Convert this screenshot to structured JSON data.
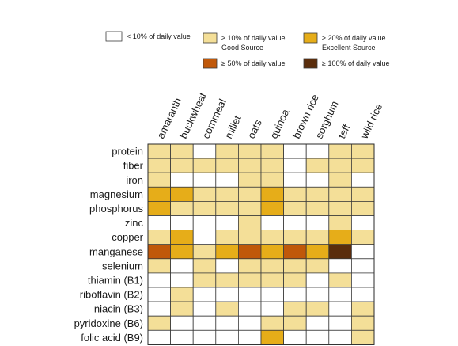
{
  "chart_data": {
    "type": "heatmap",
    "title": "",
    "columns": [
      "amaranth",
      "buckwheat",
      "cornmeal",
      "millet",
      "oats",
      "quinoa",
      "brown rice",
      "sorghum",
      "teff",
      "wild rice"
    ],
    "rows": [
      "protein",
      "fiber",
      "iron",
      "magnesium",
      "phosphorus",
      "zinc",
      "copper",
      "manganese",
      "selenium",
      "thiamin (B1)",
      "riboflavin (B2)",
      "niacin (B3)",
      "pyridoxine (B6)",
      "folic acid (B9)"
    ],
    "levels": [
      {
        "level": 0,
        "label": "< 10% of daily value",
        "color": "#ffffff"
      },
      {
        "level": 1,
        "label": "≥ 10% of daily value",
        "sublabel": "Good Source",
        "color": "#f4df98"
      },
      {
        "level": 2,
        "label": "≥ 20% of daily value",
        "sublabel": "Excellent Source",
        "color": "#e6ad19"
      },
      {
        "level": 3,
        "label": "≥ 50% of daily value",
        "color": "#c0580a"
      },
      {
        "level": 4,
        "label": "≥ 100% of daily value",
        "color": "#5a2d0c"
      }
    ],
    "values": [
      [
        1,
        1,
        0,
        1,
        1,
        1,
        0,
        0,
        1,
        1
      ],
      [
        1,
        1,
        1,
        1,
        1,
        1,
        0,
        1,
        1,
        1
      ],
      [
        1,
        0,
        0,
        0,
        1,
        1,
        0,
        0,
        1,
        0
      ],
      [
        2,
        2,
        1,
        1,
        1,
        2,
        1,
        1,
        1,
        1
      ],
      [
        2,
        1,
        1,
        1,
        1,
        2,
        1,
        1,
        1,
        1
      ],
      [
        0,
        0,
        0,
        0,
        1,
        0,
        0,
        0,
        1,
        0
      ],
      [
        1,
        2,
        0,
        1,
        1,
        1,
        1,
        1,
        2,
        1
      ],
      [
        3,
        2,
        1,
        2,
        3,
        2,
        3,
        2,
        4,
        0
      ],
      [
        1,
        0,
        1,
        0,
        1,
        1,
        1,
        1,
        0,
        0
      ],
      [
        0,
        0,
        1,
        1,
        1,
        1,
        1,
        0,
        1,
        0
      ],
      [
        0,
        1,
        0,
        0,
        0,
        0,
        0,
        0,
        0,
        0
      ],
      [
        0,
        1,
        0,
        1,
        0,
        0,
        1,
        1,
        0,
        1
      ],
      [
        1,
        0,
        0,
        0,
        0,
        1,
        1,
        0,
        0,
        1
      ],
      [
        0,
        0,
        0,
        0,
        0,
        2,
        0,
        0,
        0,
        1
      ]
    ]
  }
}
